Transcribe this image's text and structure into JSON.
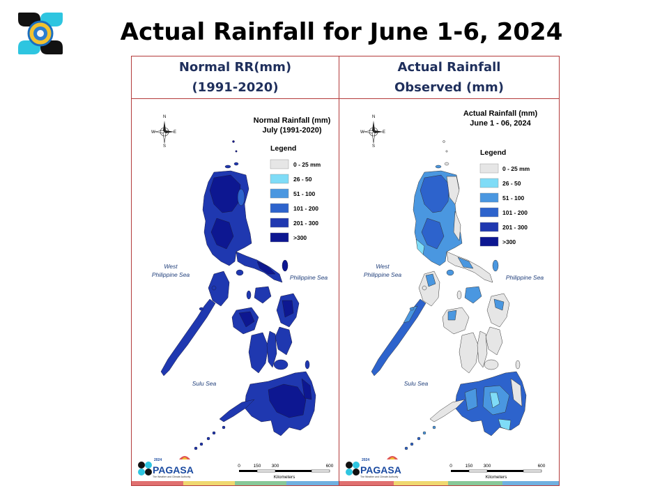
{
  "page": {
    "title": "Actual Rainfall for June 1-6, 2024"
  },
  "colors": {
    "border": "#b33a3a",
    "header_text": "#1f2f5c",
    "legend": [
      "#e6e6e6",
      "#7fdcf7",
      "#4a97e0",
      "#2d63cc",
      "#1f38b0",
      "#0d1791"
    ]
  },
  "panels": {
    "left": {
      "header_line1": "Normal RR(mm)",
      "header_line2": "(1991-2020)",
      "map_title_line1": "Normal Rainfall (mm)",
      "map_title_line2": "July (1991-2020)"
    },
    "right": {
      "header_line1": "Actual Rainfall",
      "header_line2": "Observed (mm)",
      "map_title_line1": "Actual Rainfall (mm)",
      "map_title_line2": "June 1 - 06, 2024"
    }
  },
  "legend": {
    "title": "Legend",
    "items": [
      "0 - 25 mm",
      "26 - 50",
      "51 - 100",
      "101 - 200",
      "201 - 300",
      ">300"
    ]
  },
  "labels": {
    "west_sea_line1": "West",
    "west_sea_line2": "Philippine Sea",
    "philippine_sea": "Philippine Sea",
    "sulu_sea": "Sulu Sea",
    "compass_n": "N",
    "compass_s": "S",
    "compass_e": "E",
    "compass_w": "W"
  },
  "scale_bar": {
    "ticks": [
      "0",
      "150",
      "300",
      "600"
    ],
    "unit": "Kilometers"
  },
  "footer_logo": {
    "text": "PAGASA",
    "tagline": "The Weather and Climate Authority",
    "year": "2024"
  },
  "footer_stripe_colors": [
    "#e07070",
    "#f0d870",
    "#88c898",
    "#70b0e0"
  ]
}
